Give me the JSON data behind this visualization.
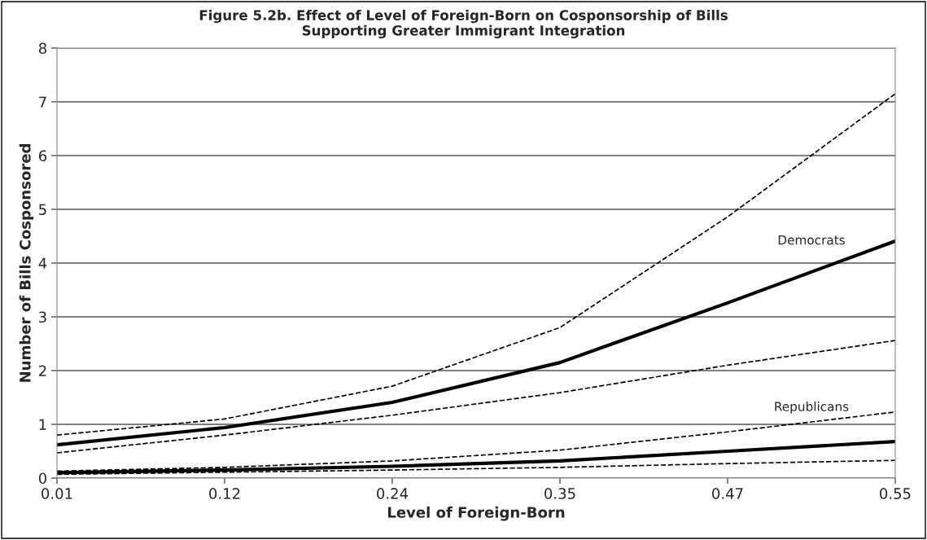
{
  "chart_data": {
    "type": "line",
    "title": "Figure 5.2b. Effect of Level of Foreign-Born on Cosponsorship of Bills\nSupporting Greater Immigrant Integration",
    "xlabel": "Level of Foreign-Born",
    "ylabel": "Number of Bills Cosponsored",
    "categories": [
      "0.01",
      "0.12",
      "0.24",
      "0.35",
      "0.47",
      "0.55"
    ],
    "series": [
      {
        "name": "Democrats",
        "color": "#000000",
        "line_style": "solid",
        "values": [
          0.62,
          0.94,
          1.41,
          2.15,
          3.26,
          4.41
        ]
      },
      {
        "color": "#000000",
        "line_style": "dashed",
        "values": [
          0.8,
          1.1,
          1.71,
          2.8,
          4.86,
          7.15
        ]
      },
      {
        "color": "#000000",
        "line_style": "dashed",
        "values": [
          0.47,
          0.8,
          1.17,
          1.59,
          2.1,
          2.56
        ]
      },
      {
        "name": "Republicans",
        "color": "#000000",
        "line_style": "solid",
        "values": [
          0.1,
          0.15,
          0.22,
          0.32,
          0.5,
          0.68
        ]
      },
      {
        "color": "#000000",
        "line_style": "dashed",
        "values": [
          0.13,
          0.2,
          0.32,
          0.52,
          0.86,
          1.23
        ]
      },
      {
        "color": "#000000",
        "line_style": "dashed",
        "values": [
          0.07,
          0.11,
          0.15,
          0.2,
          0.27,
          0.33
        ]
      }
    ],
    "ylim": [
      0,
      8
    ],
    "yticks": [
      0,
      1,
      2,
      3,
      4,
      5,
      6,
      7,
      8
    ],
    "grid": "y",
    "legend": false,
    "marker": "none"
  }
}
